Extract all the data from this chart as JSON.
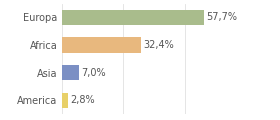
{
  "categories": [
    "Europa",
    "Africa",
    "Asia",
    "America"
  ],
  "values": [
    57.7,
    32.4,
    7.0,
    2.8
  ],
  "labels": [
    "57,7%",
    "32,4%",
    "7,0%",
    "2,8%"
  ],
  "bar_colors": [
    "#a9bc8c",
    "#e8b87e",
    "#7b8fc4",
    "#e8d068"
  ],
  "background_color": "#ffffff",
  "text_color": "#555555",
  "grid_color": "#e0e0e0",
  "xlim": [
    0,
    75
  ],
  "label_fontsize": 7.0,
  "category_fontsize": 7.0,
  "bar_height": 0.55
}
